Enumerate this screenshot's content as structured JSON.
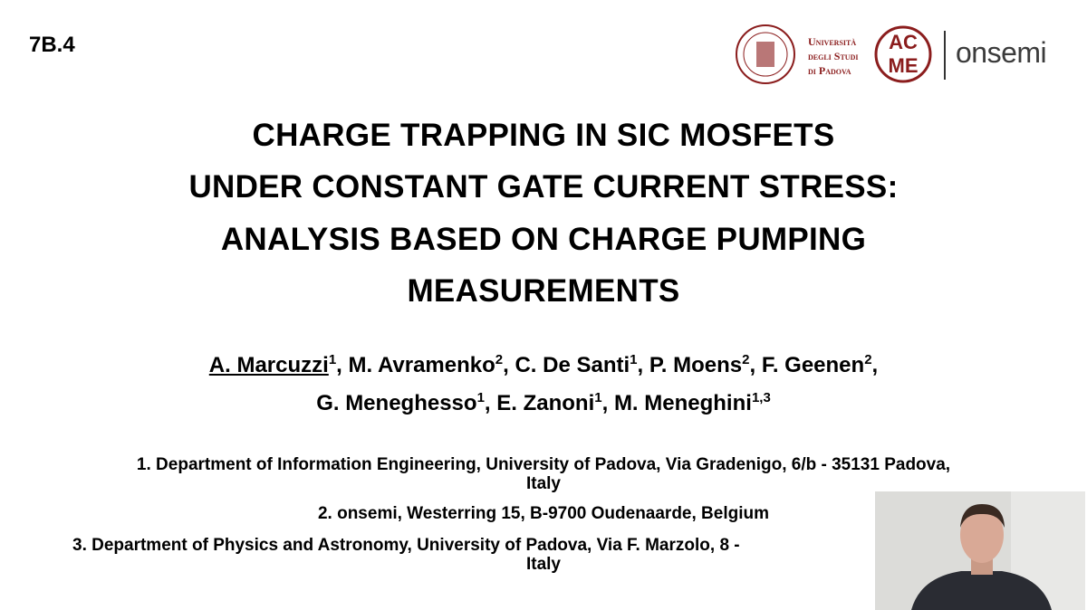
{
  "header": {
    "session": "7B.4",
    "university_logo": [
      "Università",
      "degli Studi",
      "di Padova"
    ],
    "acme_logo": [
      "AC",
      "ME"
    ],
    "company_logo": "onsemi"
  },
  "title": [
    "CHARGE TRAPPING IN SIC MOSFETS",
    "UNDER CONSTANT GATE CURRENT STRESS:",
    "ANALYSIS BASED ON CHARGE PUMPING",
    "MEASUREMENTS"
  ],
  "authors": [
    [
      {
        "name": "A. Marcuzzi",
        "affiliation": "1",
        "after": ","
      },
      {
        "name": "M. Avramenko",
        "affiliation": "2",
        "after": ","
      },
      {
        "name": "C. De Santi",
        "affiliation": "1",
        "after": ","
      },
      {
        "name": "P. Moens",
        "affiliation": "2",
        "after": ","
      },
      {
        "name": "F. Geenen",
        "affiliation": "2",
        "after": ","
      }
    ],
    [
      {
        "name": "G. Meneghesso",
        "affiliation": "1",
        "after": ","
      },
      {
        "name": "E. Zanoni",
        "affiliation": "1",
        "after": ","
      },
      {
        "name": "M. Meneghini",
        "affiliation": "1,3"
      }
    ]
  ],
  "affiliations": [
    [
      "1. Department of Information Engineering, University of Padova, Via Gradenigo, 6/b - 35131 Padova,",
      "Italy"
    ],
    [
      "2. onsemi, Westerring 15, B-9700 Oudenaarde, Belgium"
    ],
    [
      "3. Department of Physics and Astronomy, University of Padova, Via F. Marzolo, 8 -",
      "Italy"
    ]
  ]
}
